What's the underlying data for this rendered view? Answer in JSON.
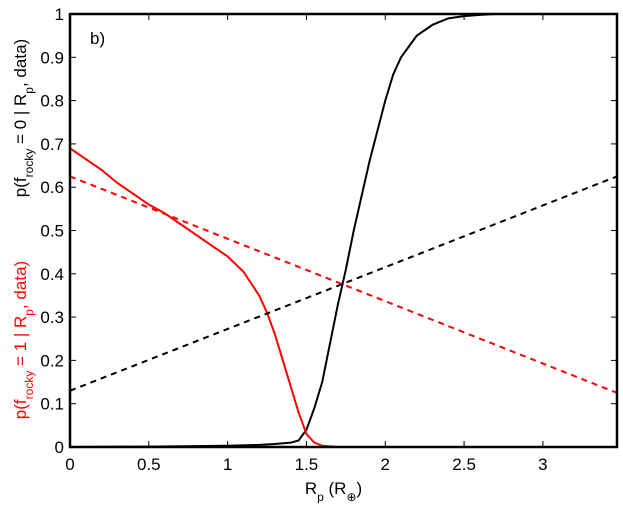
{
  "chart_data": {
    "type": "line",
    "annotation": "b)",
    "xlabel": {
      "parts": [
        "R",
        "p",
        " (R",
        "⊕",
        ")"
      ]
    },
    "ylabels": [
      {
        "color": "#000000",
        "parts": [
          "p(f",
          "rocky",
          " = 0 | R",
          "p",
          ", data)"
        ]
      },
      {
        "color": "#ff0000",
        "parts": [
          "p(f",
          "rocky",
          " = 1 | R",
          "p",
          ", data)"
        ]
      }
    ],
    "xlim": [
      0,
      3.47
    ],
    "ylim": [
      0,
      1
    ],
    "xticks": [
      0,
      0.5,
      1,
      1.5,
      2,
      2.5,
      3
    ],
    "yticks": [
      0,
      0.1,
      0.2,
      0.3,
      0.4,
      0.5,
      0.6,
      0.7,
      0.8,
      0.9,
      1
    ],
    "grid": false,
    "series": [
      {
        "color": "#000000",
        "dash": false,
        "x": [
          0,
          0.5,
          1,
          1.2,
          1.3,
          1.4,
          1.45,
          1.5,
          1.55,
          1.6,
          1.65,
          1.7,
          1.75,
          1.8,
          1.85,
          1.9,
          1.95,
          2,
          2.05,
          2.1,
          2.2,
          2.3,
          2.4,
          2.5,
          2.6,
          2.7,
          2.8,
          3,
          3.47
        ],
        "values": [
          0,
          0.001,
          0.003,
          0.005,
          0.007,
          0.01,
          0.015,
          0.04,
          0.09,
          0.15,
          0.24,
          0.33,
          0.41,
          0.5,
          0.58,
          0.66,
          0.73,
          0.8,
          0.86,
          0.9,
          0.95,
          0.975,
          0.99,
          0.995,
          0.998,
          1,
          1,
          1,
          1
        ]
      },
      {
        "color": "#ff0000",
        "dash": false,
        "x": [
          0,
          0.1,
          0.2,
          0.3,
          0.4,
          0.5,
          0.6,
          0.7,
          0.8,
          0.9,
          1,
          1.1,
          1.2,
          1.25,
          1.3,
          1.35,
          1.4,
          1.45,
          1.5,
          1.55,
          1.6,
          1.7,
          2,
          3.47
        ],
        "values": [
          0.69,
          0.665,
          0.64,
          0.61,
          0.585,
          0.56,
          0.54,
          0.515,
          0.49,
          0.465,
          0.44,
          0.405,
          0.35,
          0.31,
          0.26,
          0.2,
          0.14,
          0.08,
          0.03,
          0.01,
          0.003,
          0,
          0,
          0
        ]
      },
      {
        "color": "#000000",
        "dash": true,
        "x": [
          0,
          3.47
        ],
        "values": [
          0.13,
          0.625
        ]
      },
      {
        "color": "#ff0000",
        "dash": true,
        "x": [
          0,
          3.47
        ],
        "values": [
          0.625,
          0.125
        ]
      }
    ]
  }
}
